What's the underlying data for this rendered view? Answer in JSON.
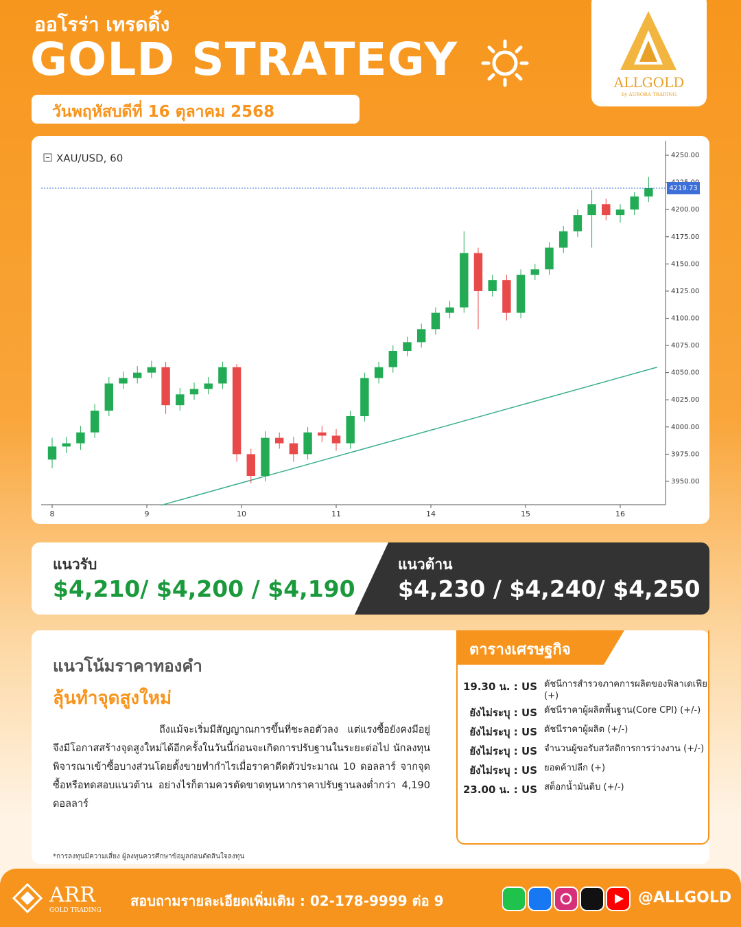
{
  "header": {
    "brand_thai": "ออโรร่า เทรดดิ้ง",
    "title": "GOLD STRATEGY",
    "date": "วันพฤหัสบดีที่ 16 ตุลาคม 2568",
    "logo": "ALLGOLD",
    "logo_sub": "by AURORA TRADING"
  },
  "chart_data": {
    "type": "candlestick",
    "symbol": "XAU/USD, 60",
    "up_color": "#22ab54",
    "down_color": "#e84a4a",
    "x": [
      0,
      3,
      6,
      9,
      12,
      15,
      18,
      21,
      24,
      27,
      30,
      33,
      36,
      39,
      42,
      45,
      48,
      51,
      54,
      57,
      60,
      63,
      66,
      69,
      72,
      75,
      78,
      81,
      84,
      87,
      90,
      93,
      96,
      99,
      102,
      105,
      108,
      111,
      114,
      117,
      120,
      123,
      126
    ],
    "open": [
      3970,
      3982,
      3985,
      3995,
      4015,
      4040,
      4045,
      4050,
      4055,
      4020,
      4030,
      4035,
      4040,
      4055,
      3975,
      3955,
      3990,
      3985,
      3975,
      3995,
      3992,
      3985,
      4010,
      4045,
      4055,
      4070,
      4078,
      4090,
      4105,
      4110,
      4160,
      4125,
      4135,
      4105,
      4140,
      4145,
      4165,
      4180,
      4195,
      4205,
      4195,
      4200,
      4212
    ],
    "high": [
      3990,
      3991,
      4001,
      4021,
      4046,
      4051,
      4056,
      4061,
      4060,
      4036,
      4041,
      4046,
      4060,
      4058,
      3980,
      3996,
      3995,
      3991,
      4000,
      4001,
      3998,
      4015,
      4050,
      4060,
      4075,
      4083,
      4095,
      4110,
      4116,
      4180,
      4165,
      4140,
      4140,
      4145,
      4150,
      4170,
      4185,
      4200,
      4218,
      4210,
      4205,
      4216,
      4230
    ],
    "low": [
      3962,
      3976,
      3979,
      3990,
      4010,
      4035,
      4040,
      4045,
      4012,
      4015,
      4025,
      4030,
      4035,
      3968,
      3948,
      3950,
      3980,
      3968,
      3970,
      3986,
      3978,
      3980,
      4005,
      4040,
      4050,
      4065,
      4073,
      4085,
      4100,
      4105,
      4090,
      4120,
      4098,
      4100,
      4135,
      4140,
      4160,
      4175,
      4165,
      4190,
      4188,
      4195,
      4207
    ],
    "close": [
      3982,
      3985,
      3995,
      4015,
      4040,
      4045,
      4050,
      4055,
      4020,
      4030,
      4035,
      4040,
      4055,
      3975,
      3955,
      3990,
      3985,
      3975,
      3995,
      3992,
      3985,
      4010,
      4045,
      4055,
      4070,
      4078,
      4090,
      4105,
      4110,
      4160,
      4125,
      4135,
      4105,
      4140,
      4145,
      4165,
      4180,
      4195,
      4205,
      4195,
      4200,
      4212,
      4219.73
    ],
    "last_price": 4219.73,
    "last_price_color": "#3d6fd8",
    "trendline": {
      "x": [
        23,
        127.8
      ],
      "values": [
        3928,
        4055
      ],
      "color": "#3aae8f"
    },
    "xlim": [
      -2.32,
      128.12
    ],
    "ylim": [
      3928.5,
      4263.3
    ],
    "xticks": [
      {
        "value": 0,
        "label": "8"
      },
      {
        "value": 20,
        "label": "9"
      },
      {
        "value": 40,
        "label": "10"
      },
      {
        "value": 60,
        "label": "11"
      },
      {
        "value": 80,
        "label": "14"
      },
      {
        "value": 100,
        "label": "15"
      },
      {
        "value": 120,
        "label": "16"
      }
    ],
    "yticks": [
      {
        "value": 3950,
        "label": "3950.00"
      },
      {
        "value": 3975,
        "label": "3975.00"
      },
      {
        "value": 4000,
        "label": "4000.00"
      },
      {
        "value": 4025,
        "label": "4025.00"
      },
      {
        "value": 4050,
        "label": "4050.00"
      },
      {
        "value": 4075,
        "label": "4075.00"
      },
      {
        "value": 4100,
        "label": "4100.00"
      },
      {
        "value": 4125,
        "label": "4125.00"
      },
      {
        "value": 4150,
        "label": "4150.00"
      },
      {
        "value": 4175,
        "label": "4175.00"
      },
      {
        "value": 4200,
        "label": "4200.00"
      },
      {
        "value": 4225,
        "label": "4225.00"
      },
      {
        "value": 4250,
        "label": "4250.00"
      }
    ]
  },
  "levels": {
    "support_label": "แนวรับ",
    "support": "$4,210/ $4,200 / $4,190",
    "resistance_label": "แนวต้าน",
    "resistance": "$4,230 / $4,240/ $4,250"
  },
  "outlook": {
    "heading": "แนวโน้มราคาทองคำ",
    "subheading": "ลุ้นทำจุดสูงใหม่",
    "body": "ถึงแม้จะเริ่มมีสัญญาณการขึ้นที่ชะลอตัวลง แต่แรงซื้อยังคงมีอยู่จึงมีโอกาสสร้างจุดสูงใหม่ได้อีกครั้งในวันนี้ก่อนจะเกิดการปรับฐานในระยะต่อไป นักลงทุนพิจารณาเข้าซื้อบางส่วนโดยตั้งขายทำกำไรเมื่อราคาดีดตัวประมาณ 10 ดอลลาร์ จากจุดซื้อหรือทดสอบแนวต้าน อย่างไรก็ตามควรตัดขาดทุนหากราคาปรับฐานลงต่ำกว่า 4,190 ดอลลาร์"
  },
  "calendar": {
    "title": "ตารางเศรษฐกิจ",
    "events": [
      {
        "time": "19.30 น. : US",
        "text": "ดัชนีการสำรวจภาคการผลิตของฟิลาเดเฟีย (+)"
      },
      {
        "time": "ยังไม่ระบุ : US",
        "text": "ดัชนีราคาผู้ผลิตพื้นฐาน(Core CPI) (+/-)"
      },
      {
        "time": "ยังไม่ระบุ : US",
        "text": "ดัชนีราคาผู้ผลิต (+/-)"
      },
      {
        "time": "ยังไม่ระบุ : US",
        "text": "จำนวนผู้ขอรับสวัสดิการการว่างงาน (+/-)"
      },
      {
        "time": "ยังไม่ระบุ : US",
        "text": "ยอดค้าปลีก (+)"
      },
      {
        "time": "23.00 น. : US",
        "text": "สต็อกน้ำมันดิบ (+/-)"
      }
    ]
  },
  "disclaimer": "*การลงทุนมีความเสี่ยง ผู้ลงทุนควรศึกษาข้อมูลก่อนตัดสินใจลงทุน",
  "footer": {
    "brand": "ARR",
    "brand_sub": "GOLD TRADING",
    "contact": "สอบถามรายละเอียดเพิ่มเติม : 02-178-9999 ต่อ 9",
    "handle": "@ALLGOLD"
  }
}
